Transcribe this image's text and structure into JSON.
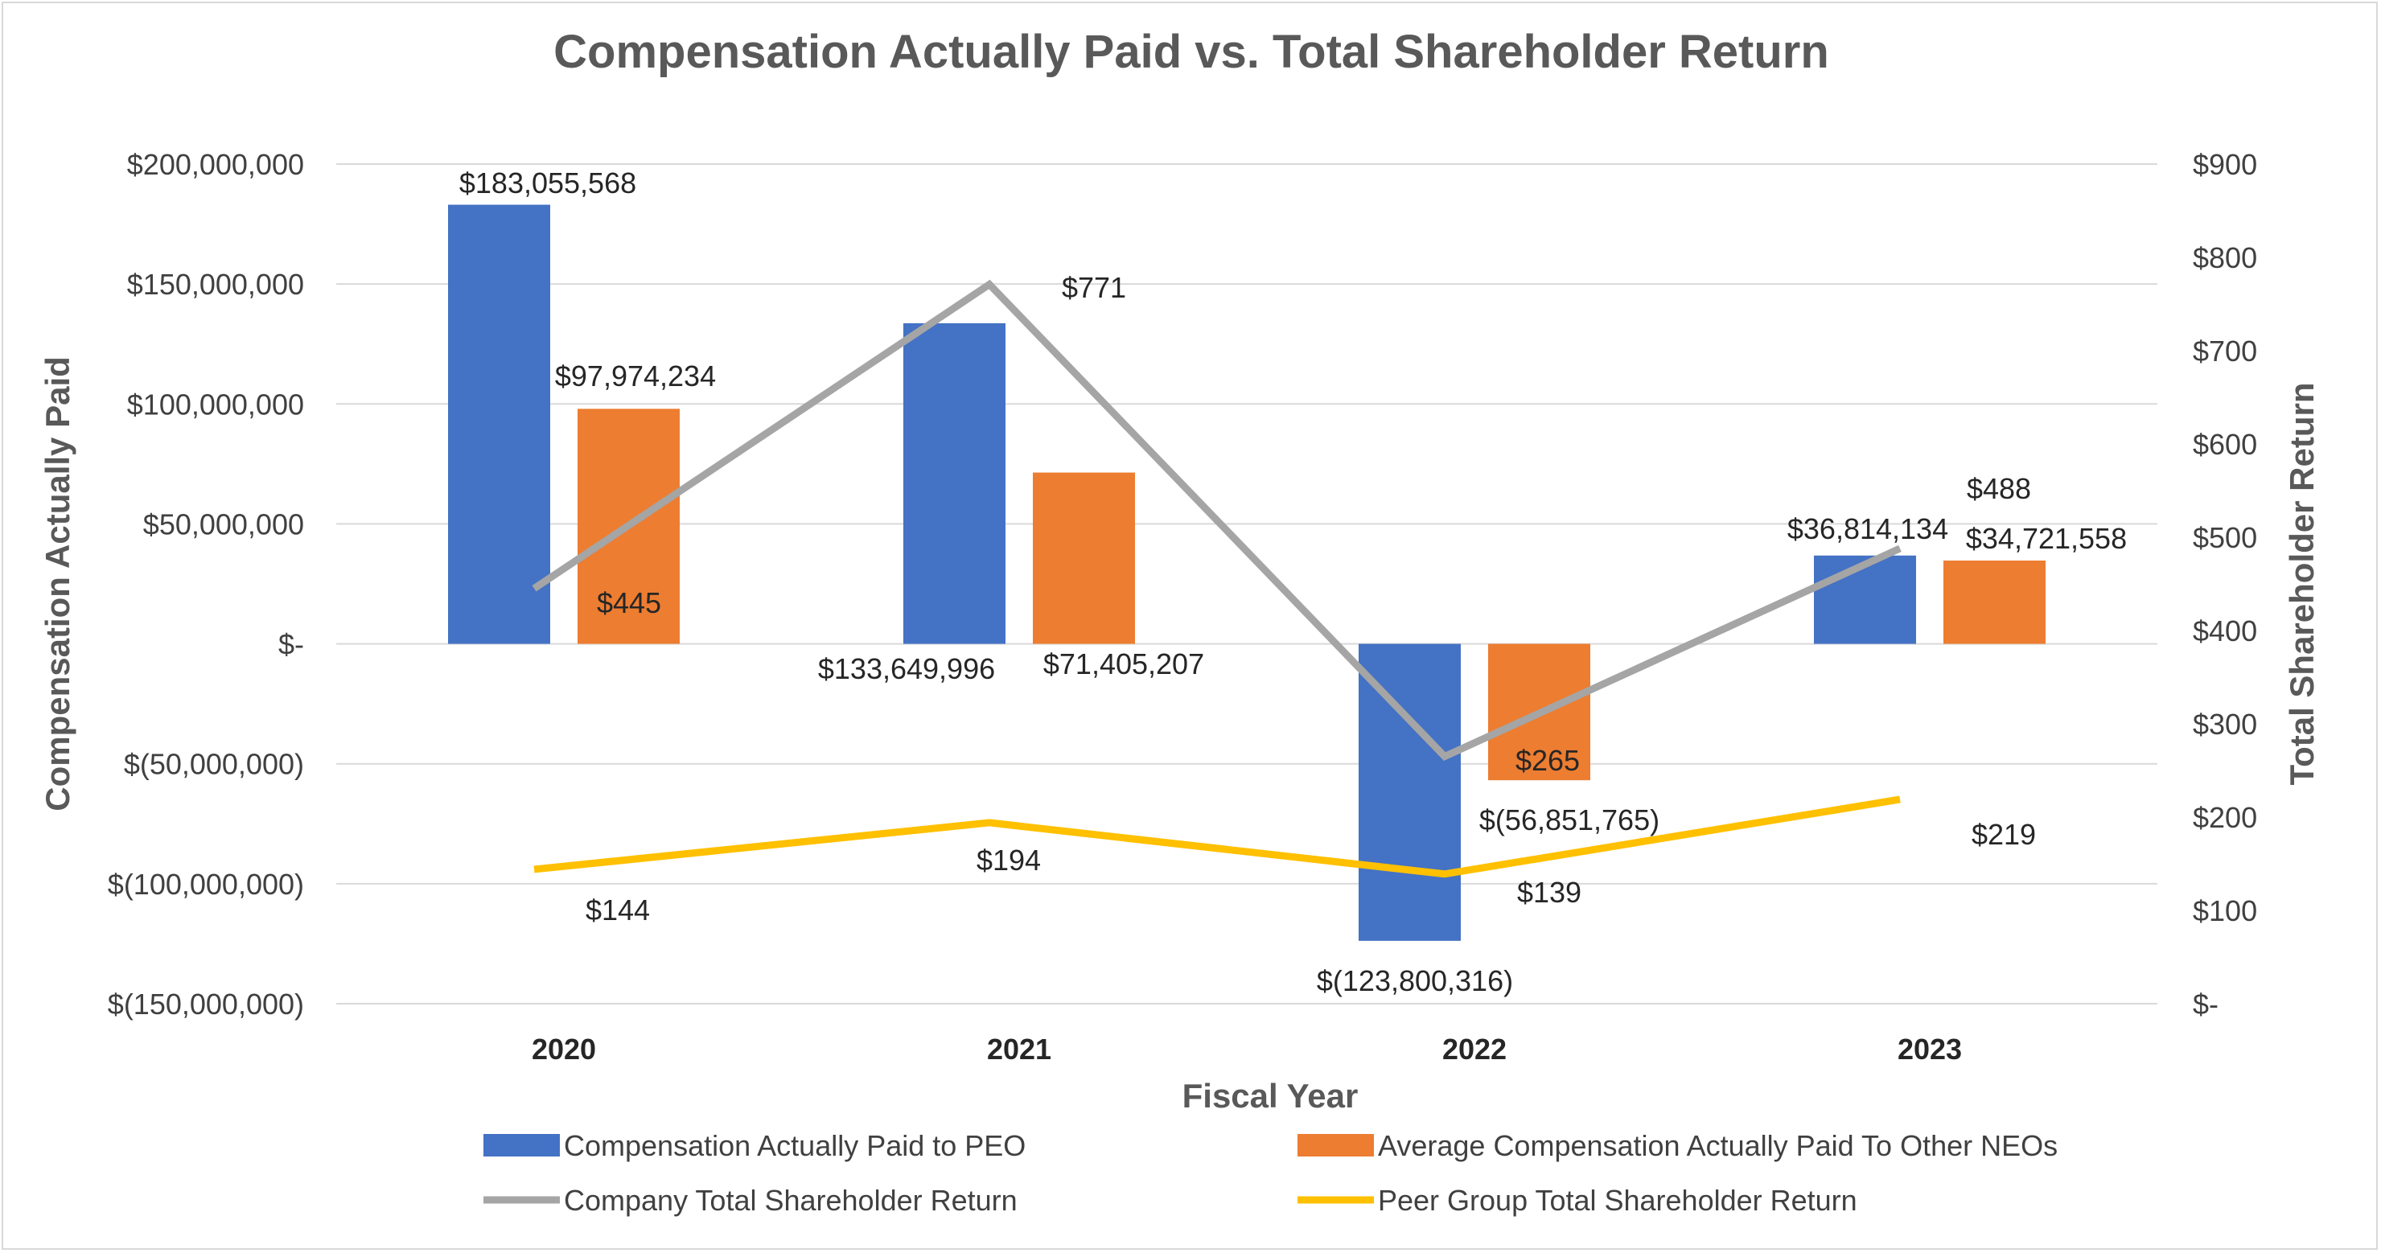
{
  "chart_data": {
    "type": "bar",
    "title": "Compensation Actually Paid vs. Total Shareholder Return",
    "xlabel": "Fiscal Year",
    "ylabel": "Compensation Actually Paid",
    "y2label": "Total Shareholder Return",
    "categories": [
      "2020",
      "2021",
      "2022",
      "2023"
    ],
    "ylim": [
      -150000000,
      200000000
    ],
    "y_ticks": [
      200000000,
      150000000,
      100000000,
      50000000,
      0,
      -50000000,
      -100000000,
      -150000000
    ],
    "y_tick_labels": [
      "$200,000,000",
      "$150,000,000",
      "$100,000,000",
      "$50,000,000",
      "$-",
      "$(50,000,000)",
      "$(100,000,000)",
      "$(150,000,000)"
    ],
    "y2lim": [
      0,
      900
    ],
    "y2_ticks": [
      900,
      800,
      700,
      600,
      500,
      400,
      300,
      200,
      100,
      0
    ],
    "y2_tick_labels": [
      "$900",
      "$800",
      "$700",
      "$600",
      "$500",
      "$400",
      "$300",
      "$200",
      "$100",
      "$-"
    ],
    "grid": true,
    "legend_position": "bottom",
    "bar_series": [
      {
        "name": "Compensation Actually Paid to PEO",
        "color": "#4472c4",
        "axis": "left",
        "values": [
          183055568,
          133649996,
          -123800316,
          36814134
        ],
        "labels": [
          "$183,055,568",
          "$133,649,996",
          "$(123,800,316)",
          "$36,814,134"
        ]
      },
      {
        "name": "Average Compensation Actually Paid To Other NEOs",
        "color": "#ed7d31",
        "axis": "left",
        "values": [
          97974234,
          71405207,
          -56851765,
          34721558
        ],
        "labels": [
          "$97,974,234",
          "$71,405,207",
          "$(56,851,765)",
          "$34,721,558"
        ]
      }
    ],
    "line_series": [
      {
        "name": "Company Total Shareholder Return",
        "color": "#a5a5a5",
        "axis": "right",
        "values": [
          445,
          771,
          265,
          488
        ],
        "labels": [
          "$445",
          "$771",
          "$265",
          "$488"
        ]
      },
      {
        "name": "Peer Group Total Shareholder Return",
        "color": "#ffc000",
        "axis": "right",
        "values": [
          144,
          194,
          139,
          219
        ],
        "labels": [
          "$144",
          "$194",
          "$139",
          "$219"
        ]
      }
    ]
  }
}
